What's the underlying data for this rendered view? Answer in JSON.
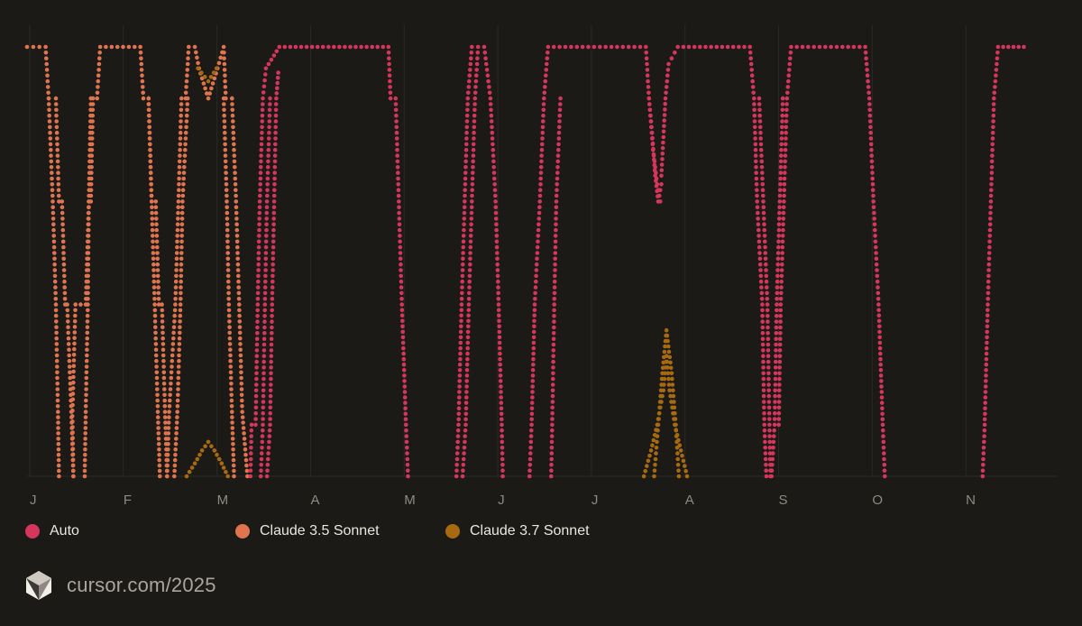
{
  "chart_data": {
    "type": "scatter",
    "x_tick_labels": [
      "J",
      "F",
      "M",
      "A",
      "M",
      "J",
      "J",
      "A",
      "S",
      "O",
      "N"
    ],
    "y_range": [
      0,
      100
    ],
    "grid": true,
    "legend_position": "bottom-left",
    "series": [
      {
        "name": "Auto",
        "color": "#d6365c",
        "segments": [
          {
            "x_start": 0.2565,
            "x_end": 0.3778,
            "upper": [
              [
                0.2565,
                60
              ],
              [
                0.2625,
                60
              ],
              [
                0.265,
                85
              ],
              [
                0.2695,
                95
              ],
              [
                0.3778,
                100
              ]
            ],
            "lower": [
              [
                0.2565,
                0
              ],
              [
                0.2625,
                10
              ],
              [
                0.265,
                35
              ],
              [
                0.2695,
                60
              ],
              [
                0.3778,
                100
              ]
            ]
          },
          {
            "x_start": 0.3778,
            "x_end": 0.57,
            "upper": [
              [
                0.3778,
                100
              ],
              [
                0.382,
                85
              ],
              [
                0.3875,
                60
              ],
              [
                0.394,
                35
              ],
              [
                0.4,
                10
              ],
              [
                0.405,
                0
              ],
              [
                0.445,
                0
              ],
              [
                0.45,
                10
              ],
              [
                0.456,
                35
              ],
              [
                0.462,
                60
              ],
              [
                0.468,
                85
              ],
              [
                0.472,
                100
              ],
              [
                0.495,
                100
              ],
              [
                0.4995,
                85
              ],
              [
                0.506,
                60
              ],
              [
                0.5125,
                35
              ],
              [
                0.519,
                10
              ],
              [
                0.523,
                0
              ],
              [
                0.548,
                0
              ],
              [
                0.552,
                10
              ],
              [
                0.558,
                35
              ],
              [
                0.564,
                60
              ],
              [
                0.57,
                85
              ]
            ],
            "lower": []
          }
        ],
        "shape": "stream"
      },
      {
        "name": "Claude 3.5 Sonnet",
        "color": "#e0744f",
        "shape": "stream"
      },
      {
        "name": "Claude 3.7 Sonnet",
        "color": "#a86a10",
        "shape": "stream"
      }
    ]
  },
  "legend": [
    {
      "label": "Auto",
      "color": "#d6365c"
    },
    {
      "label": "Claude 3.5 Sonnet",
      "color": "#e0744f"
    },
    {
      "label": "Claude 3.7 Sonnet",
      "color": "#a86a10"
    }
  ],
  "brand": {
    "text": "cursor.com/2025",
    "icon": "cursor-cube-icon"
  }
}
